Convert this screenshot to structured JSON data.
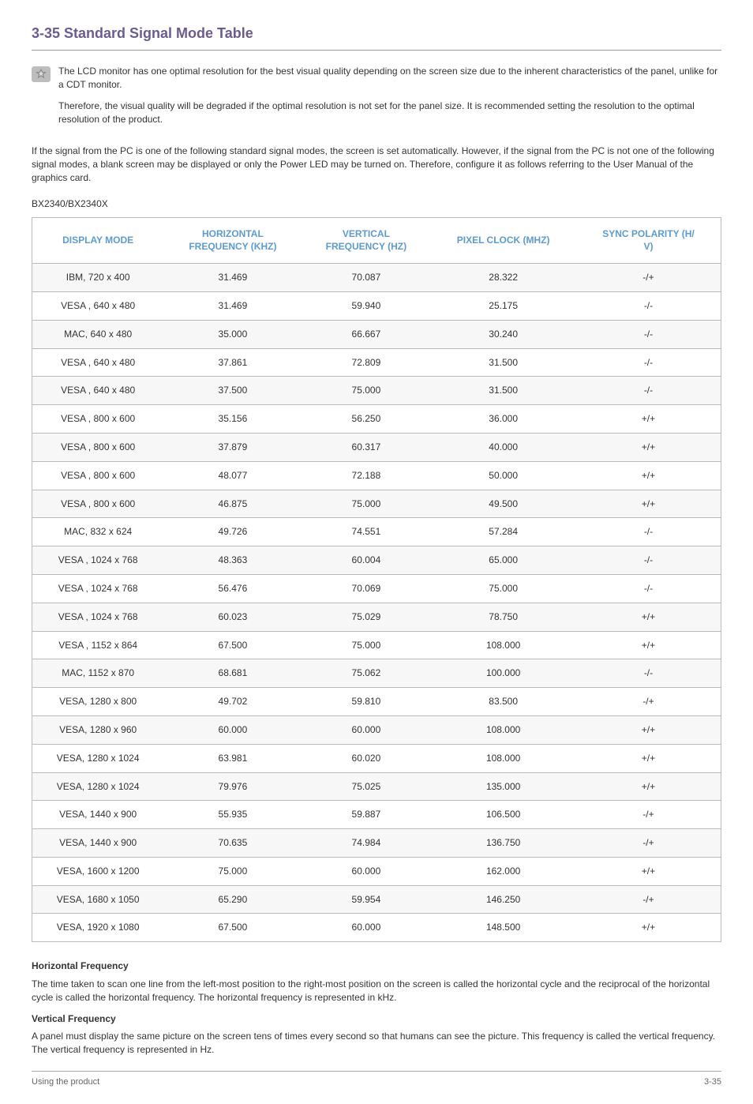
{
  "title": "3-35  Standard Signal Mode Table",
  "note": {
    "p1": "The LCD monitor has one optimal resolution for the best visual quality depending on the screen size due to the inherent characteristics of the panel, unlike for a CDT monitor.",
    "p2": "Therefore, the visual quality will be degraded if the optimal resolution is not set for the panel size. It is recommended setting the resolution to the optimal resolution of the product."
  },
  "intro": "If the signal from the PC is one of the following standard signal modes, the screen is set automatically. However, if the signal from the PC is not one of the following signal modes, a blank screen may be displayed or only the Power LED may be turned on. Therefore, configure it as follows referring to the User Manual of the graphics card.",
  "model": "BX2340/BX2340X",
  "headers": {
    "c1": "DISPLAY MODE",
    "c2a": "HORIZONTAL",
    "c2b": "FREQUENCY (KHZ)",
    "c3a": "VERTICAL",
    "c3b": "FREQUENCY (HZ)",
    "c4": "PIXEL CLOCK (MHZ)",
    "c5a": "SYNC POLARITY (H/",
    "c5b": "V)"
  },
  "rows": [
    {
      "mode": "IBM, 720 x 400",
      "hf": "31.469",
      "vf": "70.087",
      "pc": "28.322",
      "sp": "-/+"
    },
    {
      "mode": "VESA , 640 x 480",
      "hf": "31.469",
      "vf": "59.940",
      "pc": "25.175",
      "sp": "-/-"
    },
    {
      "mode": "MAC, 640 x 480",
      "hf": "35.000",
      "vf": "66.667",
      "pc": "30.240",
      "sp": "-/-"
    },
    {
      "mode": "VESA , 640 x 480",
      "hf": "37.861",
      "vf": "72.809",
      "pc": "31.500",
      "sp": "-/-"
    },
    {
      "mode": "VESA , 640 x 480",
      "hf": "37.500",
      "vf": "75.000",
      "pc": "31.500",
      "sp": "-/-"
    },
    {
      "mode": "VESA , 800 x 600",
      "hf": "35.156",
      "vf": "56.250",
      "pc": "36.000",
      "sp": "+/+"
    },
    {
      "mode": "VESA , 800 x 600",
      "hf": "37.879",
      "vf": "60.317",
      "pc": "40.000",
      "sp": "+/+"
    },
    {
      "mode": "VESA , 800 x 600",
      "hf": "48.077",
      "vf": "72.188",
      "pc": "50.000",
      "sp": "+/+"
    },
    {
      "mode": "VESA , 800 x 600",
      "hf": "46.875",
      "vf": "75.000",
      "pc": "49.500",
      "sp": "+/+"
    },
    {
      "mode": "MAC, 832 x 624",
      "hf": "49.726",
      "vf": "74.551",
      "pc": "57.284",
      "sp": "-/-"
    },
    {
      "mode": "VESA , 1024 x 768",
      "hf": "48.363",
      "vf": "60.004",
      "pc": "65.000",
      "sp": "-/-"
    },
    {
      "mode": "VESA , 1024 x 768",
      "hf": "56.476",
      "vf": "70.069",
      "pc": "75.000",
      "sp": "-/-"
    },
    {
      "mode": "VESA , 1024 x 768",
      "hf": "60.023",
      "vf": "75.029",
      "pc": "78.750",
      "sp": "+/+"
    },
    {
      "mode": "VESA , 1152 x 864",
      "hf": "67.500",
      "vf": "75.000",
      "pc": "108.000",
      "sp": "+/+"
    },
    {
      "mode": "MAC, 1152 x 870",
      "hf": "68.681",
      "vf": "75.062",
      "pc": "100.000",
      "sp": "-/-"
    },
    {
      "mode": "VESA, 1280 x 800",
      "hf": "49.702",
      "vf": "59.810",
      "pc": "83.500",
      "sp": "-/+"
    },
    {
      "mode": "VESA, 1280 x 960",
      "hf": "60.000",
      "vf": "60.000",
      "pc": "108.000",
      "sp": "+/+"
    },
    {
      "mode": "VESA, 1280 x 1024",
      "hf": "63.981",
      "vf": "60.020",
      "pc": "108.000",
      "sp": "+/+"
    },
    {
      "mode": "VESA, 1280 x 1024",
      "hf": "79.976",
      "vf": "75.025",
      "pc": "135.000",
      "sp": "+/+"
    },
    {
      "mode": "VESA, 1440 x 900",
      "hf": "55.935",
      "vf": "59.887",
      "pc": "106.500",
      "sp": "-/+"
    },
    {
      "mode": "VESA, 1440 x 900",
      "hf": "70.635",
      "vf": "74.984",
      "pc": "136.750",
      "sp": "-/+"
    },
    {
      "mode": "VESA, 1600 x 1200",
      "hf": "75.000",
      "vf": "60.000",
      "pc": "162.000",
      "sp": "+/+"
    },
    {
      "mode": "VESA, 1680 x 1050",
      "hf": "65.290",
      "vf": "59.954",
      "pc": "146.250",
      "sp": "-/+"
    },
    {
      "mode": "VESA, 1920 x 1080",
      "hf": "67.500",
      "vf": "60.000",
      "pc": "148.500",
      "sp": "+/+"
    }
  ],
  "hf_heading": "Horizontal Frequency",
  "hf_body": "The time taken to scan one line from the left-most position to the right-most position on the screen is called the horizontal cycle and the reciprocal of the horizontal cycle is called the horizontal frequency. The horizontal frequency is represented in kHz.",
  "vf_heading": "Vertical Frequency",
  "vf_body": "A panel must display the same picture on the screen tens of times every second so that humans can see the picture. This frequency is called the vertical frequency. The vertical frequency is represented in Hz.",
  "footer_left": "Using the product",
  "footer_right": "3-35",
  "colors": {
    "title": "#6b5b95",
    "header": "#5b9bd5",
    "row_alt": "#f7f7f7",
    "border": "#bbbbbb"
  }
}
